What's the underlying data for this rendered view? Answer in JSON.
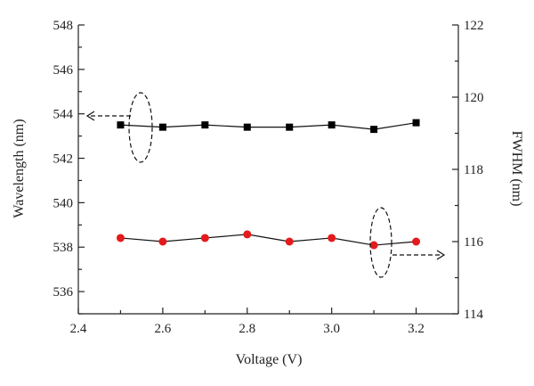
{
  "chart_data": {
    "type": "scatter",
    "xlabel": "Voltage (V)",
    "ylabel": "Wavelength (nm)",
    "y2label": "FWHM (nm)",
    "xlim": [
      2.4,
      3.3
    ],
    "ylim": [
      535,
      548
    ],
    "y2lim": [
      114,
      122
    ],
    "x_ticks": [
      "2.4",
      "2.6",
      "2.8",
      "3.0",
      "3.2"
    ],
    "y_ticks": [
      "536",
      "538",
      "540",
      "542",
      "544",
      "546",
      "548"
    ],
    "y2_ticks": [
      "114",
      "116",
      "118",
      "120",
      "122"
    ],
    "grid": false,
    "legend": "none",
    "x": [
      2.5,
      2.6,
      2.7,
      2.8,
      2.9,
      3.0,
      3.1,
      3.2
    ],
    "series": [
      {
        "axis": "left",
        "marker": "square",
        "color": "#000000",
        "values": [
          543.5,
          543.4,
          543.5,
          543.4,
          543.4,
          543.5,
          543.3,
          543.6
        ]
      },
      {
        "axis": "right",
        "marker": "circle",
        "color": "#e41a1c",
        "values": [
          116.1,
          116.0,
          116.1,
          116.2,
          116.0,
          116.1,
          115.9,
          116.0
        ]
      }
    ]
  }
}
